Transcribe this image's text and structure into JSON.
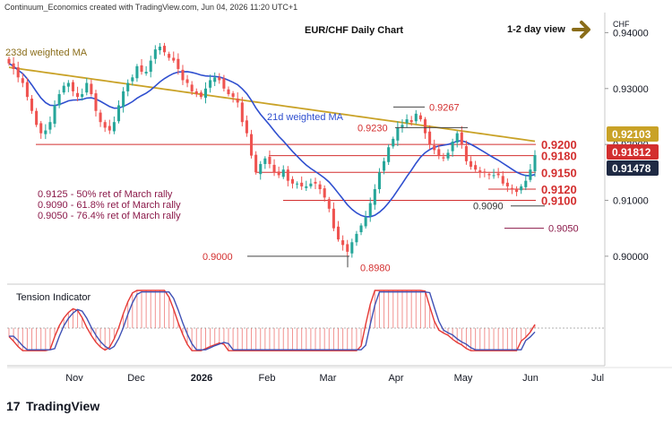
{
  "header": {
    "credit": "Continuum_Economics created with TradingView.com, Jun 04, 2026 11:20 UTC+1",
    "title": "EUR/CHF Daily Chart",
    "view": "1-2 day view",
    "arrow_icon": "right-arrow-icon"
  },
  "footer": {
    "logo_icon": "tradingview-logo-icon",
    "brand": "TradingView"
  },
  "colors": {
    "candle_up": "#26a69a",
    "candle_down": "#ef5350",
    "ma233": "#c9a227",
    "ma21": "#2f4fcf",
    "level": "#d32f2f",
    "tension_red": "#e53935",
    "tension_blue": "#3f51b5"
  },
  "chart_data": {
    "type": "candlestick",
    "currency_label": "CHF",
    "y_ticks": [
      "0.94000",
      "0.93000",
      "0.92000",
      "0.91000",
      "0.90000"
    ],
    "x_ticks": [
      "Nov",
      "Dec",
      "2026",
      "Feb",
      "Mar",
      "Apr",
      "May",
      "Jun",
      "Jul"
    ],
    "price_tags": [
      {
        "label": "0.92103",
        "style": "ma233"
      },
      {
        "label": "0.91812",
        "style": "last"
      },
      {
        "label": "0.91478",
        "style": "ma21"
      }
    ],
    "series_labels": [
      "233d weighted MA",
      "21d weighted MA"
    ],
    "levels": [
      {
        "label": "0.9200",
        "value": 0.92
      },
      {
        "label": "0.9180",
        "value": 0.918
      },
      {
        "label": "0.9150",
        "value": 0.915
      },
      {
        "label": "0.9120",
        "value": 0.912
      },
      {
        "label": "0.9100",
        "value": 0.91
      }
    ],
    "annotations": [
      {
        "label": "0.9267",
        "value": 0.9267
      },
      {
        "label": "0.9230",
        "value": 0.923
      },
      {
        "label": "0.9090",
        "value": 0.909
      },
      {
        "label": "0.9050",
        "value": 0.905
      },
      {
        "label": "0.9000",
        "value": 0.9
      },
      {
        "label": "0.8980",
        "value": 0.898
      }
    ],
    "retracements": [
      "0.9125 - 50% ret of March rally",
      "0.9090 - 61.8% ret of March rally",
      "0.9050 - 76.4% ret of March rally"
    ],
    "indicator_title": "Tension Indicator",
    "close": [
      0.9345,
      0.9335,
      0.932,
      0.931,
      0.9285,
      0.926,
      0.9235,
      0.922,
      0.9225,
      0.924,
      0.927,
      0.929,
      0.9305,
      0.931,
      0.9295,
      0.9285,
      0.929,
      0.931,
      0.929,
      0.926,
      0.924,
      0.923,
      0.9225,
      0.924,
      0.927,
      0.9295,
      0.931,
      0.932,
      0.934,
      0.933,
      0.933,
      0.935,
      0.937,
      0.9375,
      0.9365,
      0.9355,
      0.935,
      0.9335,
      0.9315,
      0.931,
      0.9295,
      0.929,
      0.9285,
      0.93,
      0.9315,
      0.932,
      0.9315,
      0.93,
      0.929,
      0.9285,
      0.9275,
      0.924,
      0.922,
      0.918,
      0.915,
      0.9165,
      0.9175,
      0.9165,
      0.915,
      0.9145,
      0.9155,
      0.9135,
      0.913,
      0.913,
      0.9125,
      0.9125,
      0.913,
      0.913,
      0.912,
      0.9105,
      0.9085,
      0.905,
      0.903,
      0.902,
      0.9008,
      0.9025,
      0.904,
      0.9055,
      0.907,
      0.9095,
      0.912,
      0.915,
      0.917,
      0.9195,
      0.921,
      0.923,
      0.9235,
      0.9245,
      0.924,
      0.9255,
      0.9245,
      0.922,
      0.92,
      0.919,
      0.918,
      0.9175,
      0.9185,
      0.9205,
      0.922,
      0.92,
      0.917,
      0.916,
      0.9155,
      0.915,
      0.915,
      0.9145,
      0.9145,
      0.9145,
      0.913,
      0.9125,
      0.912,
      0.9115,
      0.9125,
      0.9135,
      0.9155,
      0.9181
    ]
  }
}
